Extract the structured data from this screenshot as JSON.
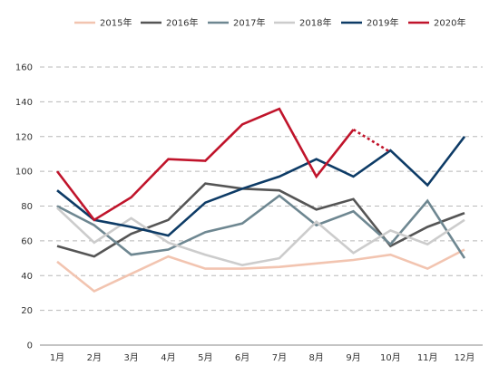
{
  "chart_data": {
    "type": "line",
    "title": "",
    "xlabel": "",
    "ylabel": "",
    "ylim": [
      0,
      160
    ],
    "yticks": [
      0,
      20,
      40,
      60,
      80,
      100,
      120,
      140,
      160
    ],
    "categories": [
      "1月",
      "2月",
      "3月",
      "4月",
      "5月",
      "6月",
      "7月",
      "8月",
      "9月",
      "10月",
      "11月",
      "12月"
    ],
    "grid": true,
    "legend_position": "top",
    "series": [
      {
        "name": "2015年",
        "color": "#f2c4b0",
        "values": [
          48,
          31,
          41,
          51,
          44,
          44,
          45,
          47,
          49,
          52,
          44,
          55
        ]
      },
      {
        "name": "2016年",
        "color": "#555555",
        "values": [
          57,
          51,
          64,
          72,
          93,
          90,
          89,
          78,
          84,
          57,
          68,
          76
        ]
      },
      {
        "name": "2017年",
        "color": "#6e8791",
        "values": [
          80,
          69,
          52,
          55,
          65,
          70,
          86,
          69,
          77,
          58,
          83,
          50
        ]
      },
      {
        "name": "2018年",
        "color": "#cccccc",
        "values": [
          79,
          59,
          73,
          59,
          52,
          46,
          50,
          71,
          53,
          66,
          58,
          72
        ]
      },
      {
        "name": "2019年",
        "color": "#0d3b66",
        "values": [
          89,
          72,
          68,
          63,
          82,
          90,
          97,
          107,
          97,
          112,
          92,
          120
        ]
      },
      {
        "name": "2020年",
        "color": "#c0142b",
        "values": [
          100,
          72,
          85,
          107,
          106,
          127,
          136,
          97,
          124,
          null,
          null,
          null
        ],
        "projection": {
          "from_index": 8,
          "to_index": 9,
          "to_value": 111
        }
      }
    ]
  }
}
